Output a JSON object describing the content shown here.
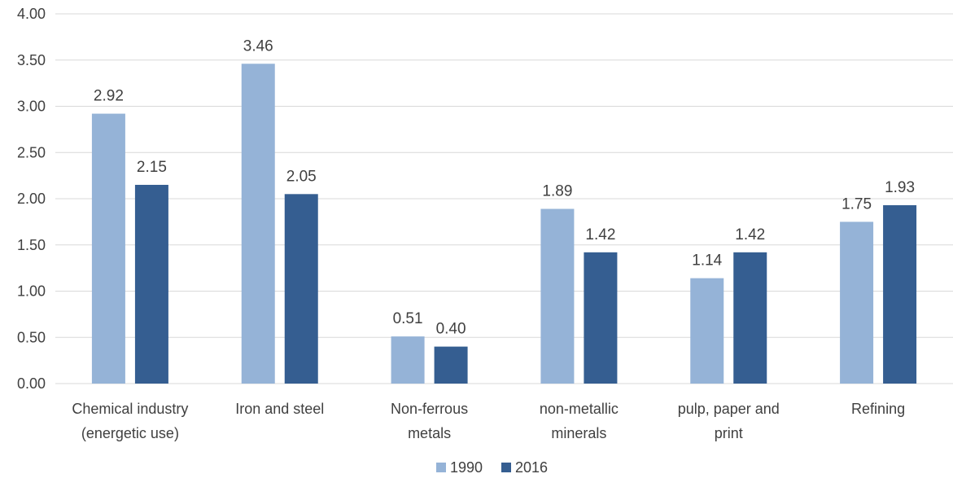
{
  "chart_data": {
    "type": "bar",
    "categories": [
      [
        "Chemical industry",
        "(energetic use)"
      ],
      [
        "Iron and steel"
      ],
      [
        "Non-ferrous",
        "metals"
      ],
      [
        "non-metallic",
        "minerals"
      ],
      [
        "pulp, paper and",
        "print"
      ],
      [
        "Refining"
      ]
    ],
    "series": [
      {
        "name": "1990",
        "color": "#95b3d7",
        "values": [
          2.92,
          3.46,
          0.51,
          1.89,
          1.14,
          1.75
        ],
        "labels": [
          "2.92",
          "3.46",
          "0.51",
          "1.89",
          "1.14",
          "1.75"
        ]
      },
      {
        "name": "2016",
        "color": "#355e91",
        "values": [
          2.15,
          2.05,
          0.4,
          1.42,
          1.42,
          1.93
        ],
        "labels": [
          "2.15",
          "2.05",
          "0.40",
          "1.42",
          "1.42",
          "1.93"
        ]
      }
    ],
    "y_ticks": [
      "0.00",
      "0.50",
      "1.00",
      "1.50",
      "2.00",
      "2.50",
      "3.00",
      "3.50",
      "4.00"
    ],
    "ylim": [
      0,
      4
    ],
    "grid": true,
    "legend": "bottom-center",
    "title": "",
    "xlabel": "",
    "ylabel": ""
  }
}
